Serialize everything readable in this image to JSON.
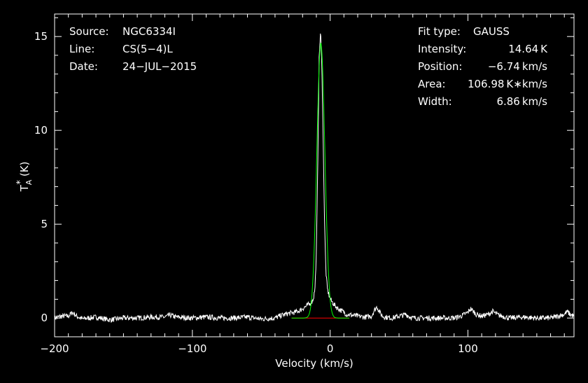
{
  "chart_data": {
    "type": "line",
    "xlabel": "Velocity (km/s)",
    "ylabel": {
      "base": "T",
      "sub": "A",
      "sup": "*",
      "unit": "(K)"
    },
    "xlim": [
      -200,
      177
    ],
    "ylim": [
      -1.0,
      16.2
    ],
    "x_tick_labels": [
      -200,
      -100,
      0,
      100
    ],
    "y_tick_labels": [
      0,
      5,
      10,
      15
    ],
    "grid": false,
    "info_left": [
      {
        "key": "Source:",
        "value": "NGC6334I"
      },
      {
        "key": "Line:",
        "value": "CS(5−4)L"
      },
      {
        "key": "Date:",
        "value": "24−JUL−2015"
      }
    ],
    "info_right": [
      {
        "key": "Fit type:",
        "value": "GAUSS"
      },
      {
        "key": "Intensity:",
        "value": "14.64 K"
      },
      {
        "key": "Position:",
        "value": "−6.74 km/s"
      },
      {
        "key": "Area:",
        "value": "106.98 K∗km/s"
      },
      {
        "key": "Width:",
        "value": "6.86 km/s"
      }
    ],
    "fit": {
      "amplitude": 14.64,
      "center": -6.74,
      "fwhm": 6.86
    },
    "fit_window": [
      -28,
      14
    ],
    "series": [
      {
        "x": [
          -200,
          -195,
          -190,
          -187,
          -184,
          -180,
          -170,
          -160,
          -150,
          -140,
          -130,
          -120,
          -116,
          -112,
          -100,
          -90,
          -80,
          -70,
          -60,
          -50,
          -40,
          -35,
          -30,
          -26,
          -22,
          -19,
          -17,
          -15,
          -13,
          -12,
          -11,
          -10,
          -9,
          -8,
          -7,
          -6,
          -5,
          -4,
          -3,
          -2,
          -1,
          0,
          1,
          2,
          3,
          5,
          8,
          12,
          16,
          20,
          25,
          30,
          32,
          34,
          36,
          38,
          40,
          45,
          50,
          53,
          55,
          57,
          60,
          70,
          80,
          90,
          95,
          100,
          102,
          104,
          106,
          110,
          115,
          118,
          120,
          122,
          125,
          130,
          140,
          150,
          160,
          165,
          170,
          172,
          174,
          177
        ],
        "y": [
          0.0,
          0.1,
          0.1,
          0.3,
          0.1,
          -0.05,
          0.05,
          -0.1,
          0.0,
          0.0,
          0.05,
          0.05,
          0.15,
          0.05,
          0.0,
          0.05,
          0.0,
          0.0,
          0.05,
          -0.05,
          0.0,
          0.15,
          0.25,
          0.3,
          0.4,
          0.55,
          0.65,
          0.75,
          0.9,
          1.1,
          1.6,
          3.5,
          8.0,
          13.8,
          15.3,
          13.5,
          9.2,
          4.8,
          2.4,
          1.55,
          1.25,
          1.05,
          0.9,
          0.8,
          0.7,
          0.55,
          0.4,
          0.2,
          0.15,
          0.1,
          0.05,
          0.1,
          0.4,
          0.6,
          0.3,
          0.1,
          0.05,
          0.0,
          0.1,
          0.15,
          0.2,
          0.1,
          0.0,
          0.0,
          0.0,
          0.0,
          0.1,
          0.3,
          0.5,
          0.35,
          0.2,
          0.1,
          0.2,
          0.35,
          0.25,
          0.15,
          0.1,
          0.0,
          0.05,
          0.0,
          0.0,
          0.1,
          0.2,
          0.35,
          0.2,
          0.1
        ]
      }
    ],
    "colors": {
      "spectrum": "#ffffff",
      "fit": "#00ff00",
      "baseline": "#ff0000",
      "background": "#000000",
      "axes": "#ffffff"
    }
  }
}
